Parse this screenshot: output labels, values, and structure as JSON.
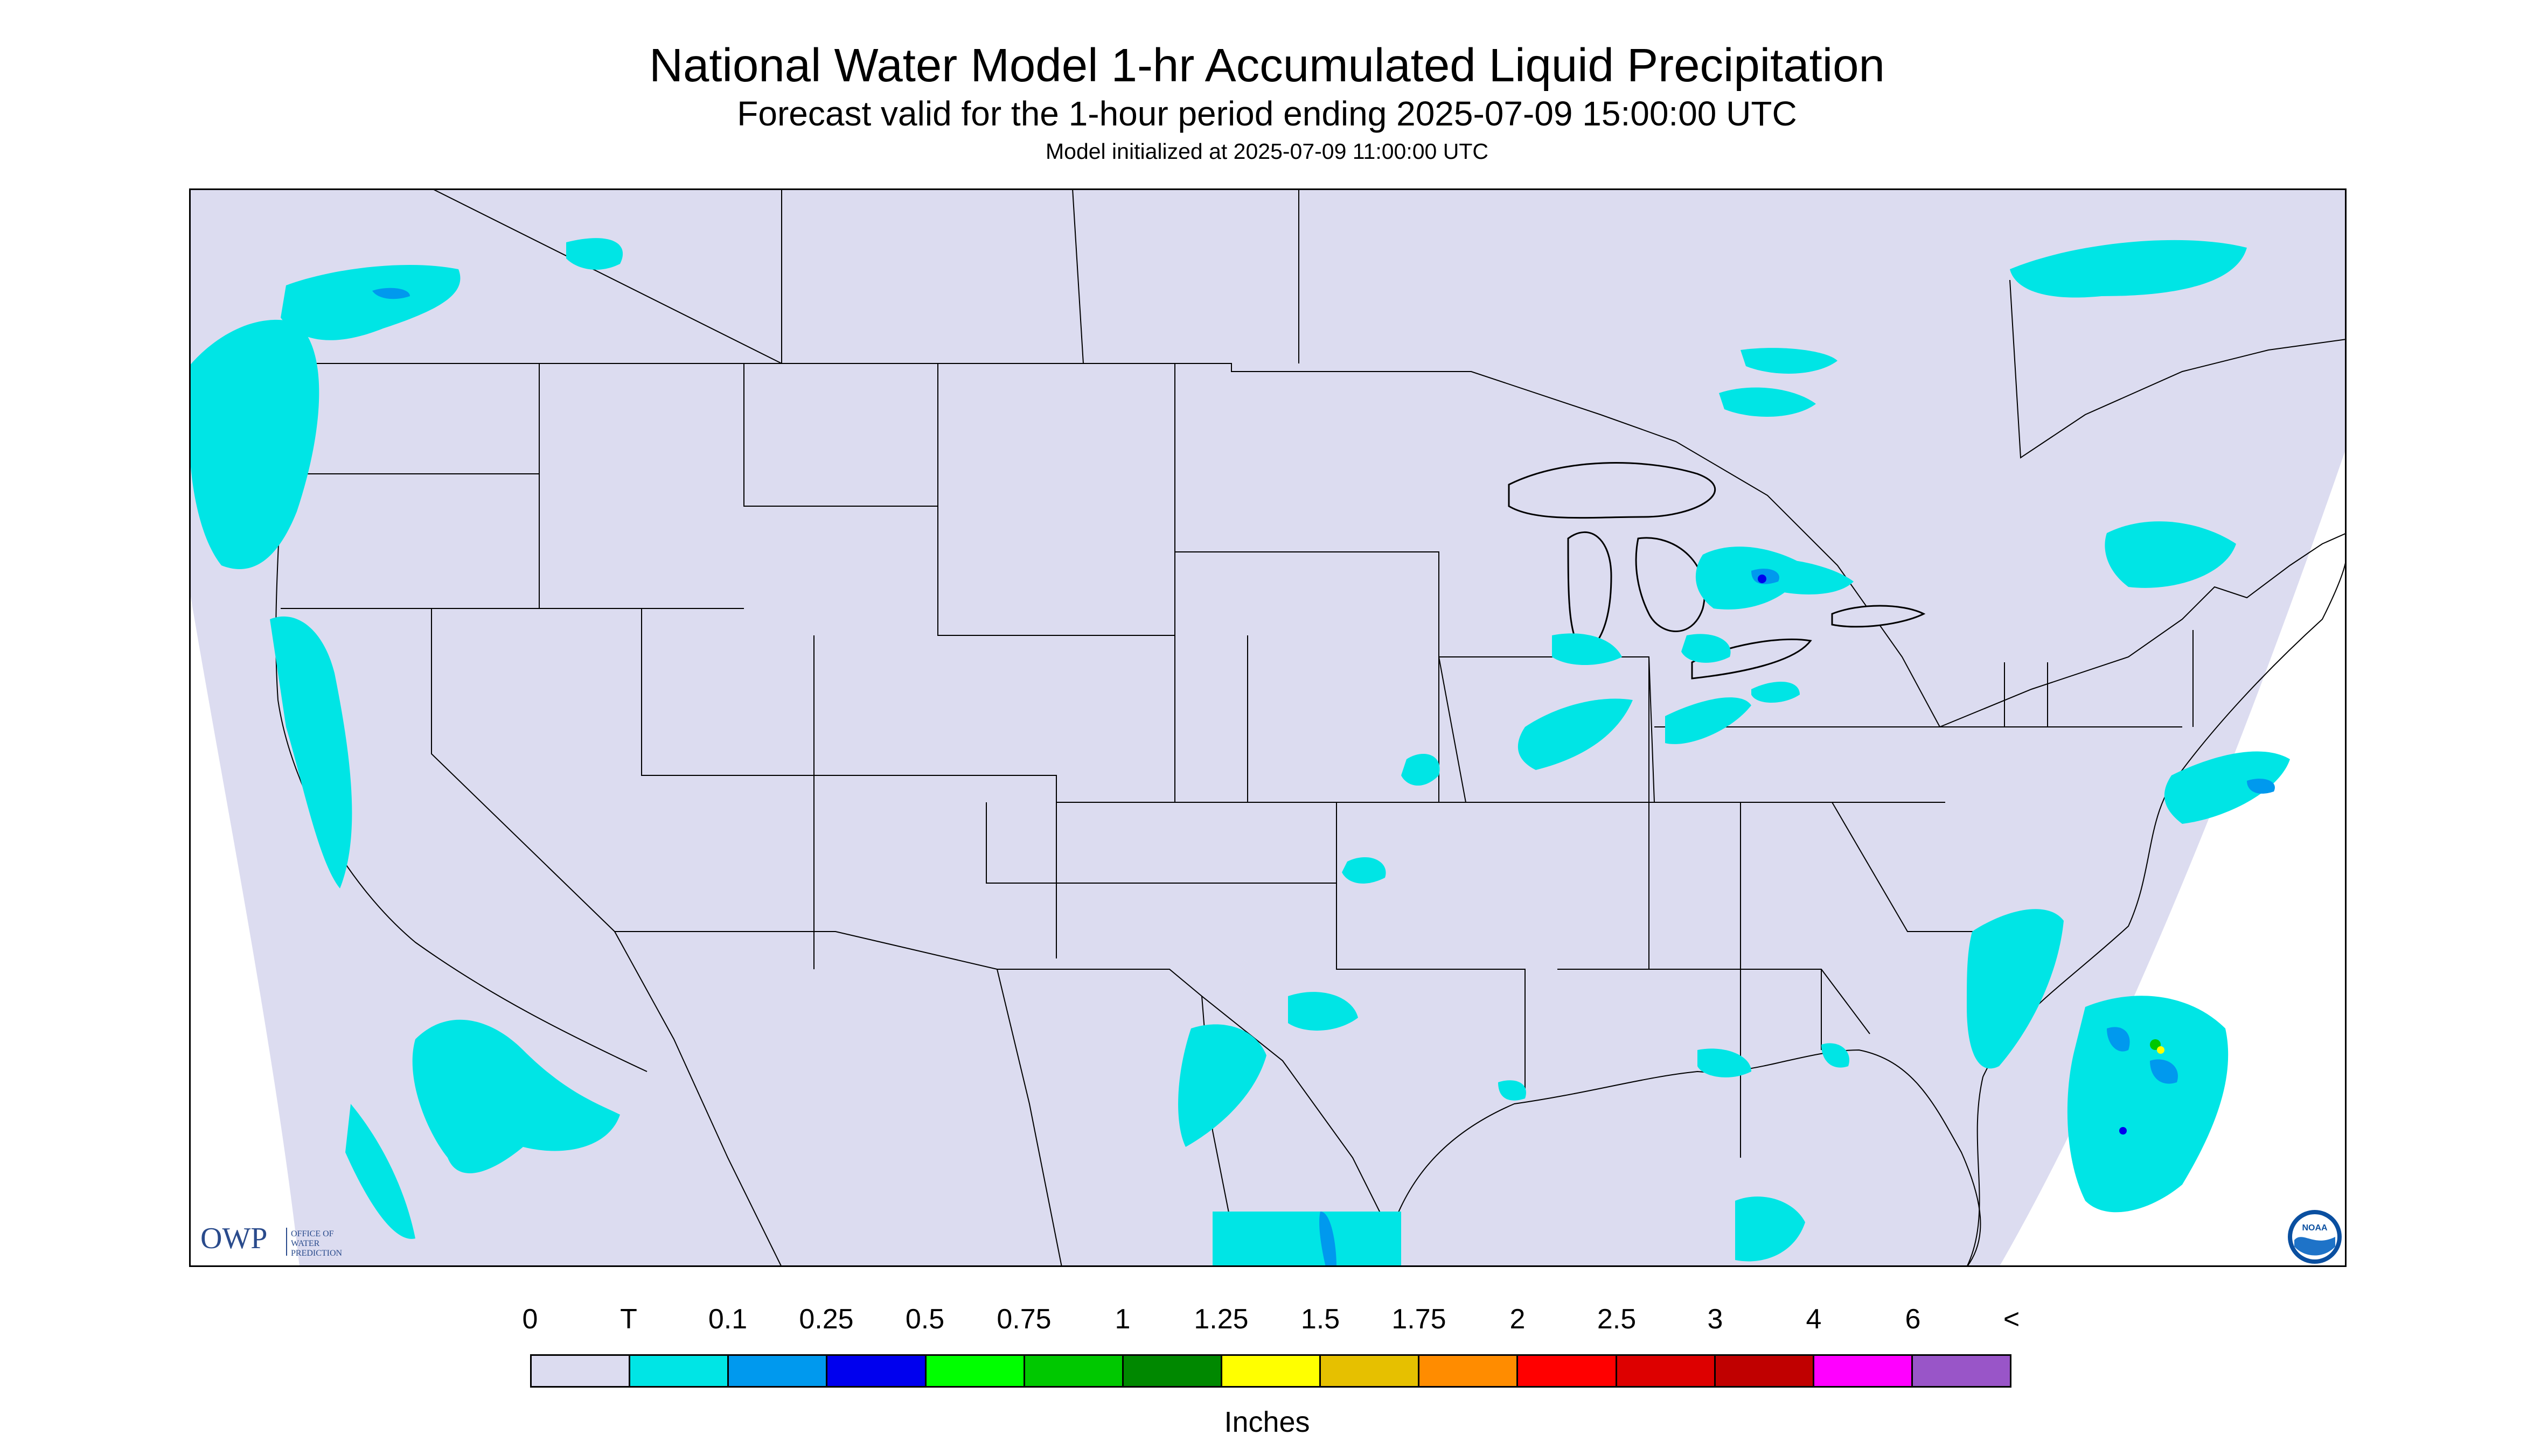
{
  "header": {
    "title": "National Water Model 1-hr Accumulated Liquid Precipitation",
    "subtitle": "Forecast valid for the 1-hour period ending 2025-07-09 15:00:00 UTC",
    "init_line": "Model initialized at 2025-07-09 11:00:00 UTC"
  },
  "map": {
    "background_color": "#dcdcf0",
    "outside_domain_color": "#ffffff",
    "boundary_color": "#000000",
    "precip_regions": [
      "Pacific Northwest",
      "Northern California coast",
      "Pacific offshore",
      "Southern Canada",
      "Lake Huron / Michigan",
      "Ohio Valley",
      "Mid-Atlantic coast",
      "Carolina coast",
      "Gulf Coast",
      "Florida",
      "Western Atlantic",
      "Quebec"
    ]
  },
  "logos": {
    "owp_main": "OWP",
    "owp_line1": "OFFICE OF",
    "owp_line2": "WATER",
    "owp_line3": "PREDICTION",
    "noaa": "NOAA"
  },
  "legend": {
    "labels": [
      "0",
      "T",
      "0.1",
      "0.25",
      "0.5",
      "0.75",
      "1",
      "1.25",
      "1.5",
      "1.75",
      "2",
      "2.5",
      "3",
      "4",
      "6",
      "<"
    ],
    "colors": [
      "#dcdcf0",
      "#00e5e5",
      "#0099ee",
      "#0000ee",
      "#00ff00",
      "#00c800",
      "#008800",
      "#ffff00",
      "#e6c000",
      "#ff8c00",
      "#ff0000",
      "#dd0000",
      "#c00000",
      "#ff00ff",
      "#9955c8"
    ],
    "units": "Inches"
  }
}
